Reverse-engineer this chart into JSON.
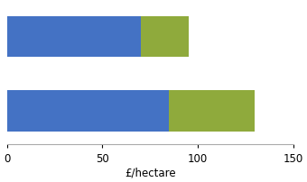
{
  "blue_values": [
    70,
    85
  ],
  "green_values": [
    25,
    45
  ],
  "blue_color": "#4472c4",
  "green_color": "#8faa3c",
  "xlabel": "£/hectare",
  "xlim": [
    0,
    150
  ],
  "xticks": [
    0,
    50,
    100,
    150
  ],
  "background_color": "#ffffff",
  "bar_height": 0.55,
  "bar_positions": [
    1.0,
    0.0
  ],
  "ylim": [
    -0.45,
    1.45
  ]
}
